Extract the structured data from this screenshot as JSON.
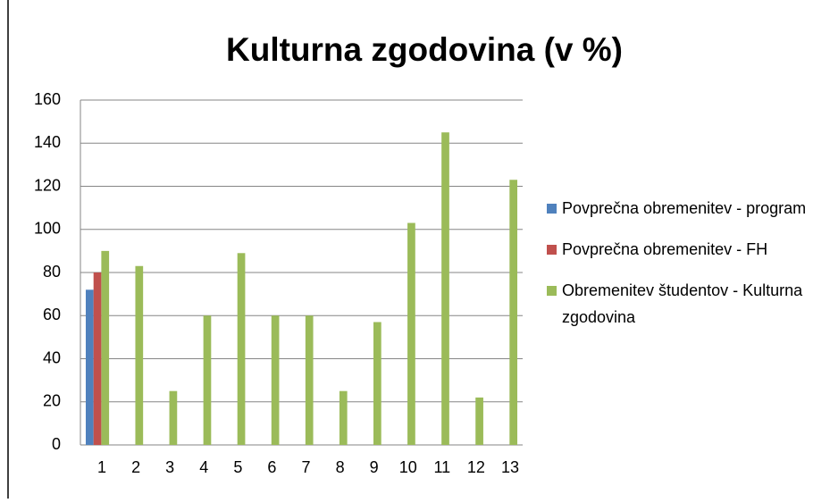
{
  "chart_data": {
    "type": "bar",
    "title": "Kulturna zgodovina (v %)",
    "categories": [
      "1",
      "2",
      "3",
      "4",
      "5",
      "6",
      "7",
      "8",
      "9",
      "10",
      "11",
      "12",
      "13"
    ],
    "series": [
      {
        "name": "Povprečna obremenitev - program",
        "color": "#4f81bd",
        "values": [
          72,
          null,
          null,
          null,
          null,
          null,
          null,
          null,
          null,
          null,
          null,
          null,
          null
        ]
      },
      {
        "name": "Povprečna obremenitev - FH",
        "color": "#c0504d",
        "values": [
          80,
          null,
          null,
          null,
          null,
          null,
          null,
          null,
          null,
          null,
          null,
          null,
          null
        ]
      },
      {
        "name": "Obremenitev študentov - Kulturna zgodovina",
        "color": "#9bbb59",
        "values": [
          90,
          83,
          25,
          60,
          89,
          60,
          60,
          25,
          57,
          103,
          145,
          22,
          123
        ]
      }
    ],
    "ylim": [
      0,
      160
    ],
    "yticks": [
      0,
      20,
      40,
      60,
      80,
      100,
      120,
      140,
      160
    ],
    "grid": true,
    "legend": "right"
  }
}
